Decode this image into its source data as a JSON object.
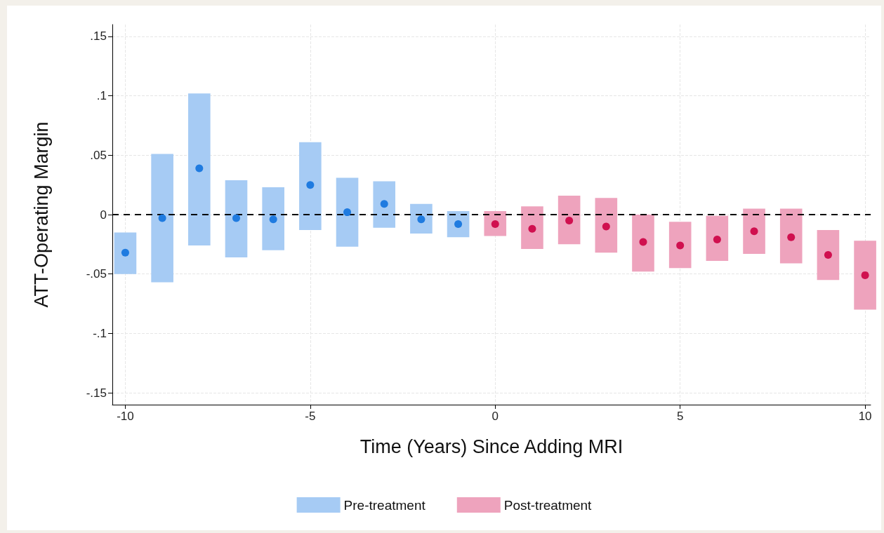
{
  "chart_data": {
    "type": "bar",
    "xlabel": "Time (Years) Since Adding MRI",
    "ylabel": "ATT-Operating Margin",
    "xlim": [
      -10.35,
      10.15
    ],
    "xticks": [
      -10,
      -5,
      0,
      5,
      10
    ],
    "ylim": [
      -0.16,
      0.16
    ],
    "yticks": [
      {
        "value": -0.15,
        "label": "-.15"
      },
      {
        "value": -0.1,
        "label": "-.1"
      },
      {
        "value": -0.05,
        "label": "-.05"
      },
      0,
      {
        "value": 0.05,
        "label": ".05"
      },
      {
        "value": 0.1,
        "label": ".1"
      },
      {
        "value": 0.15,
        "label": ".15"
      }
    ],
    "grid": true,
    "legend": "bottom",
    "ref_lines": [
      {
        "axis": "y",
        "value": 0,
        "color": "#000000",
        "line_style": "dashed"
      }
    ],
    "series": [
      {
        "name": "Pre-treatment",
        "color": "#a6cbf4",
        "x": [
          -10,
          -9,
          -8,
          -7,
          -6,
          -5,
          -4,
          -3,
          -2,
          -1
        ],
        "base": [
          -0.05,
          -0.057,
          -0.026,
          -0.036,
          -0.03,
          -0.013,
          -0.027,
          -0.011,
          -0.016,
          -0.019
        ],
        "values": [
          0.035,
          0.108,
          0.128,
          0.065,
          0.053,
          0.074,
          0.058,
          0.039,
          0.025,
          0.022
        ]
      },
      {
        "name": "Post-treatment",
        "color": "#eea3bd",
        "x": [
          0,
          1,
          2,
          3,
          4,
          5,
          6,
          7,
          8,
          9,
          10
        ],
        "base": [
          -0.018,
          -0.029,
          -0.025,
          -0.032,
          -0.048,
          -0.045,
          -0.039,
          -0.033,
          -0.041,
          -0.055,
          -0.08
        ],
        "values": [
          0.021,
          0.036,
          0.041,
          0.046,
          0.048,
          0.039,
          0.038,
          0.038,
          0.046,
          0.042,
          0.058
        ]
      },
      {
        "type": "scatter",
        "marker": "circle",
        "color": "#1f7be0",
        "x": [
          -10,
          -9,
          -8,
          -7,
          -6,
          -5,
          -4,
          -3,
          -2,
          -1
        ],
        "values": [
          -0.032,
          -0.003,
          0.039,
          -0.003,
          -0.004,
          0.025,
          0.002,
          0.009,
          -0.004,
          -0.008
        ]
      },
      {
        "type": "scatter",
        "marker": "circle",
        "color": "#d0104f",
        "x": [
          0,
          1,
          2,
          3,
          4,
          5,
          6,
          7,
          8,
          9,
          10
        ],
        "values": [
          -0.008,
          -0.012,
          -0.005,
          -0.01,
          -0.023,
          -0.026,
          -0.021,
          -0.014,
          -0.019,
          -0.034,
          -0.051
        ]
      }
    ]
  }
}
